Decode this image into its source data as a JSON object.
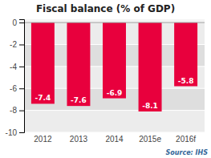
{
  "chart_data": {
    "type": "bar",
    "title": "Fiscal balance (% of GDP)",
    "categories": [
      "2012",
      "2013",
      "2014",
      "2015e",
      "2016f"
    ],
    "values": [
      -7.4,
      -7.6,
      -6.9,
      -8.1,
      -5.8
    ],
    "color": "#e8003d",
    "data_labels": true,
    "ylim": [
      -10,
      0.3
    ],
    "yticks": [
      0,
      -2,
      -4,
      -6,
      -8,
      -10
    ],
    "grid": true,
    "annotations": [
      "Source: IHS"
    ]
  }
}
